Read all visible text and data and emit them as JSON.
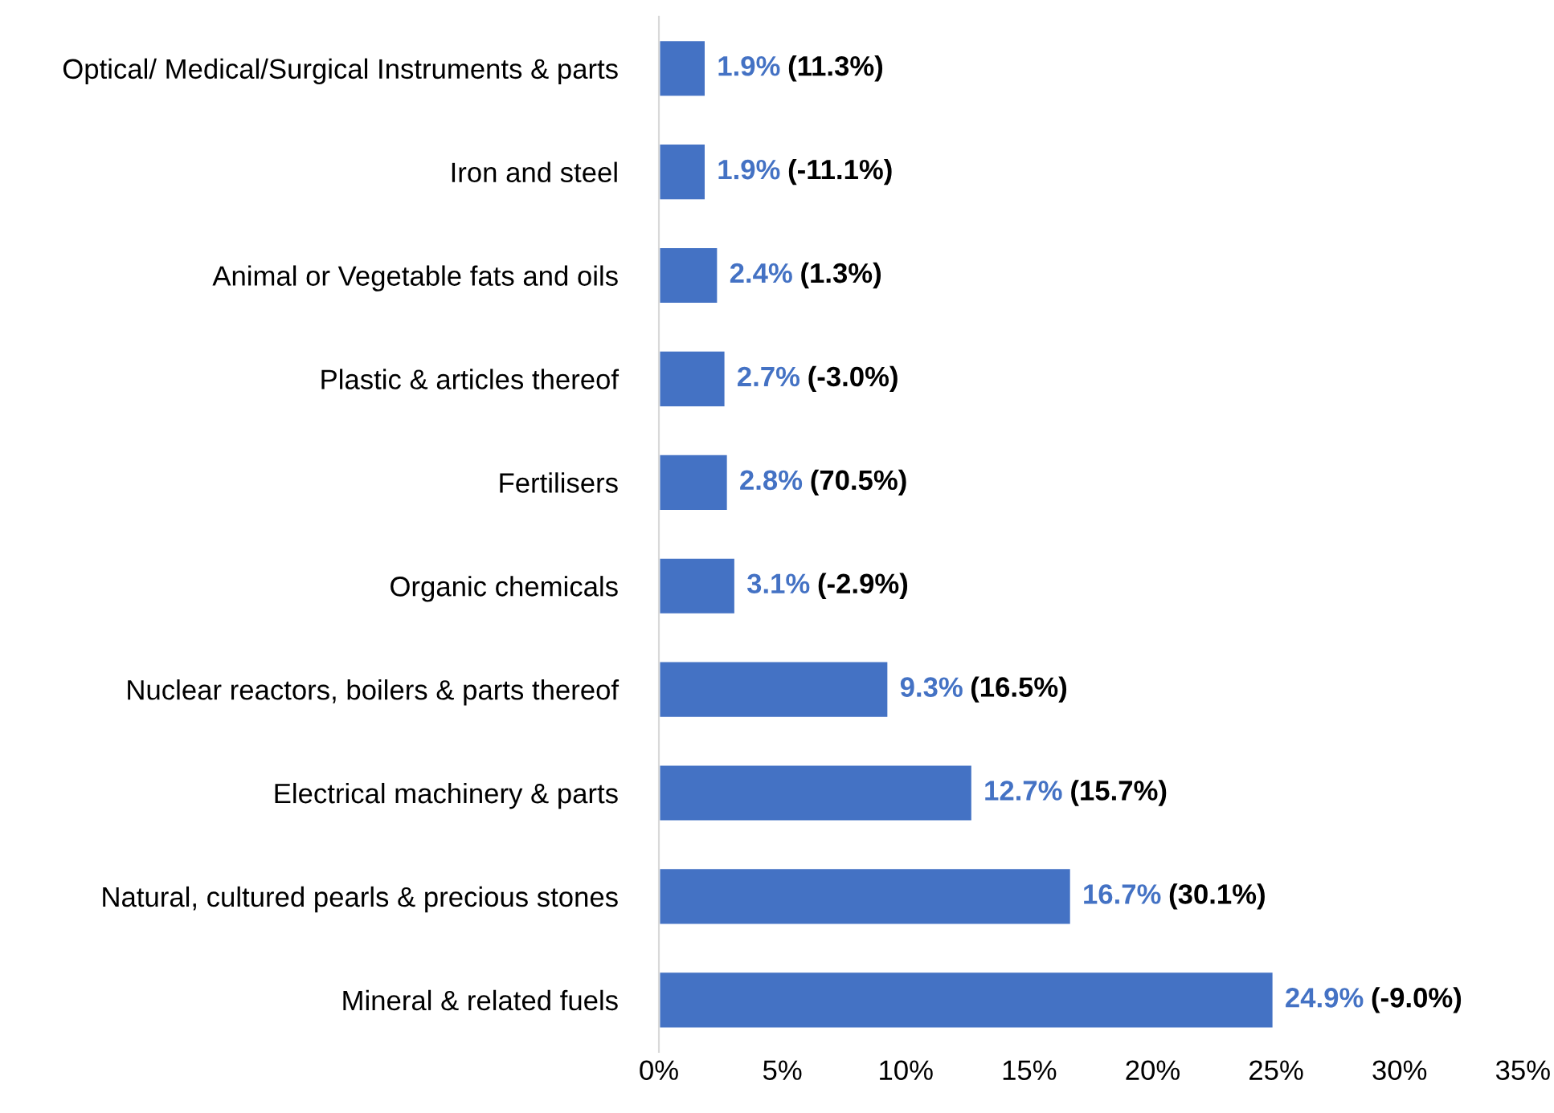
{
  "chart_data": {
    "type": "bar",
    "orientation": "horizontal",
    "categories": [
      "Optical/ Medical/Surgical Instruments & parts",
      "Iron and steel",
      "Animal or Vegetable fats and oils",
      "Plastic & articles thereof",
      "Fertilisers",
      "Organic chemicals",
      "Nuclear reactors, boilers & parts thereof",
      "Electrical machinery & parts",
      "Natural, cultured pearls & precious stones",
      "Mineral & related fuels"
    ],
    "values": [
      1.9,
      1.9,
      2.4,
      2.7,
      2.8,
      3.1,
      9.3,
      12.7,
      16.7,
      24.9
    ],
    "value_labels": [
      "1.9%",
      "1.9%",
      "2.4%",
      "2.7%",
      "2.8%",
      "3.1%",
      "9.3%",
      "12.7%",
      "16.7%",
      "24.9%"
    ],
    "color": "#4472c4",
    "xlim": [
      0,
      35
    ],
    "xticks": [
      {
        "value": 0,
        "label": "0%"
      },
      {
        "value": 5,
        "label": "5%"
      },
      {
        "value": 10,
        "label": "10%"
      },
      {
        "value": 15,
        "label": "15%"
      },
      {
        "value": 20,
        "label": "20%"
      },
      {
        "value": 25,
        "label": "25%"
      },
      {
        "value": 30,
        "label": "30%"
      },
      {
        "value": 35,
        "label": "35%"
      }
    ],
    "annotations": [
      "(11.3%)",
      "(-11.1%)",
      "(1.3%)",
      "(-3.0%)",
      "(70.5%)",
      "(-2.9%)",
      "(16.5%)",
      "(15.7%)",
      "(30.1%)",
      "(-9.0%)"
    ],
    "grid": false,
    "legend": false
  }
}
